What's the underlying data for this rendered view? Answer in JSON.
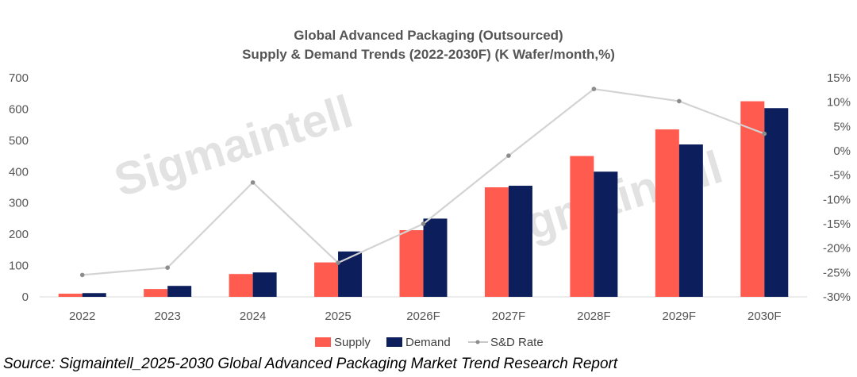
{
  "chart_data": {
    "type": "bar",
    "title": [
      "Global Advanced Packaging (Outsourced)",
      "Supply & Demand Trends (2022-2030F) (K Wafer/month,%)"
    ],
    "categories": [
      "2022",
      "2023",
      "2024",
      "2025",
      "2026F",
      "2027F",
      "2028F",
      "2029F",
      "2030F"
    ],
    "series": [
      {
        "name": "Supply",
        "type": "bar",
        "axis": "left",
        "color": "#ff5b4f",
        "values": [
          10,
          25,
          73,
          110,
          213,
          350,
          450,
          535,
          625
        ]
      },
      {
        "name": "Demand",
        "type": "bar",
        "axis": "left",
        "color": "#0c1f5c",
        "values": [
          12,
          35,
          78,
          145,
          250,
          355,
          400,
          487,
          603
        ]
      },
      {
        "name": "S&D Rate",
        "type": "line",
        "axis": "right",
        "color": "#d3d3d3",
        "values": [
          -25.5,
          -24,
          -6.5,
          -23,
          -15,
          -1,
          12.7,
          10.2,
          3.5
        ]
      }
    ],
    "left_axis": {
      "min": 0,
      "max": 700,
      "step": 100,
      "ticks": [
        "0",
        "100",
        "200",
        "300",
        "400",
        "500",
        "600",
        "700"
      ]
    },
    "right_axis": {
      "min": -30,
      "max": 15,
      "step": 5,
      "ticks": [
        "-30%",
        "-25%",
        "-20%",
        "-15%",
        "-10%",
        "-5%",
        "0%",
        "5%",
        "10%",
        "15%"
      ]
    },
    "grid": false,
    "legend_position": "bottom",
    "watermark": "Sigmaintell"
  },
  "source_text": "Source: Sigmaintell_2025-2030 Global Advanced Packaging Market Trend Research Report"
}
